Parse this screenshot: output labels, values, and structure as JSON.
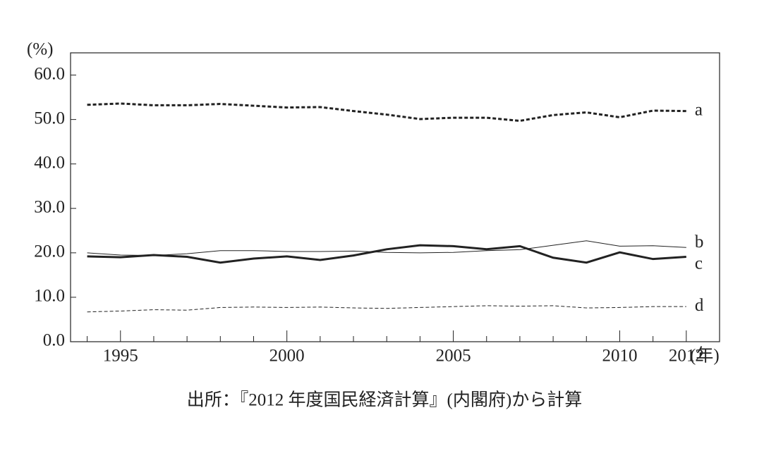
{
  "chart_data": {
    "type": "line",
    "y_label": "(%)",
    "x_label": "(年)",
    "caption": "出所：『2012 年度国民経済計算』(内閣府)から計算",
    "x": [
      1994,
      1995,
      1996,
      1997,
      1998,
      1999,
      2000,
      2001,
      2002,
      2003,
      2004,
      2005,
      2006,
      2007,
      2008,
      2009,
      2010,
      2011,
      2012
    ],
    "xlim": [
      1993.5,
      2013
    ],
    "xticks": [
      1995,
      2000,
      2005,
      2010,
      2012
    ],
    "xticks_minor": [
      1994,
      1996,
      1997,
      1998,
      1999,
      2001,
      2002,
      2003,
      2004,
      2006,
      2007,
      2008,
      2009,
      2011
    ],
    "ylim": [
      0,
      65
    ],
    "yticks": [
      {
        "value": 0,
        "label": "0.0"
      },
      {
        "value": 10,
        "label": "10.0"
      },
      {
        "value": 20,
        "label": "20.0"
      },
      {
        "value": 30,
        "label": "30.0"
      },
      {
        "value": 40,
        "label": "40.0"
      },
      {
        "value": 50,
        "label": "50.0"
      },
      {
        "value": 60,
        "label": "60.0"
      }
    ],
    "grid": false,
    "series": [
      {
        "name": "a",
        "color": "#222222",
        "width": 3,
        "dash": "5,3",
        "values": [
          53.3,
          53.6,
          53.2,
          53.2,
          53.5,
          53.1,
          52.7,
          52.8,
          51.9,
          51.1,
          50.1,
          50.4,
          50.4,
          49.7,
          51.0,
          51.6,
          50.5,
          52.0,
          51.9
        ]
      },
      {
        "name": "b",
        "color": "#222222",
        "width": 1,
        "dash": "none",
        "values": [
          20.0,
          19.5,
          19.4,
          19.8,
          20.5,
          20.5,
          20.3,
          20.3,
          20.4,
          20.1,
          20.0,
          20.1,
          20.5,
          20.7,
          21.7,
          22.7,
          21.5,
          21.6,
          21.2
        ]
      },
      {
        "name": "c",
        "color": "#222222",
        "width": 3,
        "dash": "none",
        "values": [
          19.2,
          19.0,
          19.5,
          19.1,
          17.8,
          18.7,
          19.2,
          18.4,
          19.4,
          20.8,
          21.7,
          21.5,
          20.8,
          21.5,
          18.9,
          17.8,
          20.1,
          18.6,
          19.1
        ]
      },
      {
        "name": "d",
        "color": "#222222",
        "width": 1,
        "dash": "5,3",
        "values": [
          6.7,
          6.9,
          7.2,
          7.1,
          7.7,
          7.8,
          7.7,
          7.8,
          7.6,
          7.5,
          7.7,
          7.9,
          8.1,
          8.0,
          8.1,
          7.6,
          7.7,
          7.9,
          7.9
        ]
      }
    ]
  }
}
